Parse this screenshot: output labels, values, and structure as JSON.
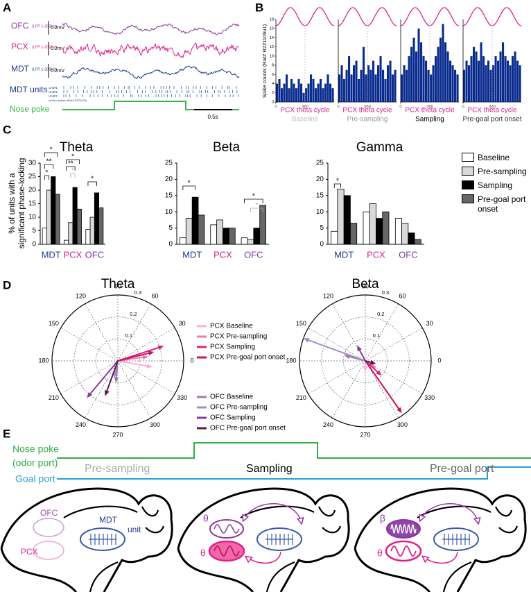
{
  "labels": [
    "A",
    "B",
    "C",
    "D",
    "E"
  ],
  "panel_a": {
    "traces": [
      {
        "name": "OFC",
        "filter": "(LFP 1-300Hz)",
        "scale": "0.2mV",
        "color": "#8b3a9b"
      },
      {
        "name": "PCX",
        "filter": "(LFP 1-300Hz)",
        "scale": "0.2mV",
        "color": "#e0208a"
      },
      {
        "name": "MDT",
        "filter": "(LFP 1-300Hz)",
        "scale": "0.2mV",
        "color": "#1f3b8c"
      }
    ],
    "units_label": "MDT units",
    "units": [
      "Unit#1",
      "Unit#2",
      "Unit#3"
    ],
    "units_note": "(sorted spikes #Rat# R221024)",
    "nose_poke": "Nose poke",
    "time_scale": "0.5s"
  },
  "chart_data": [
    {
      "type": "histogram",
      "xlabel": "PCX theta cycle",
      "title": "Baseline",
      "title_color": "#c0c0c0",
      "color": "#0b2c8f",
      "ylabel": "Spike counts (Rat# R221106u1)",
      "bins": [
        0,
        30,
        60,
        90,
        120,
        150,
        180,
        210,
        240,
        270,
        300,
        330,
        360,
        390,
        420,
        450,
        480,
        510,
        540,
        570,
        600,
        630,
        660,
        690,
        720
      ],
      "counts": [
        4,
        5,
        3,
        4,
        6,
        3,
        5,
        4,
        3,
        5,
        4,
        2,
        3,
        4,
        6,
        5,
        3,
        4,
        5,
        3,
        4,
        6,
        4,
        3
      ],
      "xlim": [
        0,
        720
      ],
      "ylim": [
        0,
        18
      ],
      "xticks": [
        0,
        360
      ],
      "yticks": [
        0,
        2,
        4,
        6,
        8,
        10,
        12,
        14,
        16,
        18
      ]
    },
    {
      "type": "histogram",
      "xlabel": "PCX theta cycle",
      "title": "Pre-sampling",
      "title_color": "#999999",
      "color": "#0b2c8f",
      "bins": [
        0,
        30,
        60,
        90,
        120,
        150,
        180,
        210,
        240,
        270,
        300,
        330,
        360,
        390,
        420,
        450,
        480,
        510,
        540,
        570,
        600,
        630,
        660,
        690,
        720
      ],
      "counts": [
        6,
        8,
        5,
        7,
        10,
        6,
        8,
        9,
        5,
        7,
        12,
        6,
        8,
        7,
        9,
        6,
        8,
        10,
        7,
        5,
        8,
        9,
        6,
        7
      ],
      "xlim": [
        0,
        720
      ],
      "ylim": [
        0,
        18
      ],
      "xticks": [
        0,
        360
      ]
    },
    {
      "type": "histogram",
      "xlabel": "PCX theta cycle",
      "title": "Sampling",
      "title_color": "#000000",
      "color": "#0b2c8f",
      "bins": [
        0,
        30,
        60,
        90,
        120,
        150,
        180,
        210,
        240,
        270,
        300,
        330,
        360,
        390,
        420,
        450,
        480,
        510,
        540,
        570,
        600,
        630,
        660,
        690,
        720
      ],
      "counts": [
        6,
        8,
        7,
        10,
        12,
        14,
        11,
        16,
        13,
        10,
        9,
        7,
        6,
        8,
        10,
        12,
        14,
        17,
        13,
        11,
        9,
        8,
        7,
        6
      ],
      "xlim": [
        0,
        720
      ],
      "ylim": [
        0,
        18
      ],
      "xticks": [
        0,
        360
      ]
    },
    {
      "type": "histogram",
      "xlabel": "PCX theta cycle",
      "title": "Pre-goal port onset",
      "title_color": "#333333",
      "color": "#0b2c8f",
      "bins": [
        0,
        30,
        60,
        90,
        120,
        150,
        180,
        210,
        240,
        270,
        300,
        330,
        360,
        390,
        420,
        450,
        480,
        510,
        540,
        570,
        600,
        630,
        660,
        690,
        720
      ],
      "counts": [
        7,
        9,
        8,
        10,
        12,
        11,
        9,
        13,
        10,
        8,
        9,
        7,
        8,
        10,
        9,
        11,
        13,
        10,
        9,
        8,
        10,
        11,
        9,
        8
      ],
      "xlim": [
        0,
        720
      ],
      "ylim": [
        0,
        18
      ],
      "xticks": [
        0,
        360
      ]
    },
    {
      "type": "bar",
      "title": "Theta",
      "ylabel": [
        "% of units with a",
        "significant phase-locking"
      ],
      "categories": [
        "MDT",
        "PCX",
        "OFC"
      ],
      "category_colors": [
        "#1f3b8c",
        "#d6208a",
        "#7b3a9b"
      ],
      "series": [
        {
          "name": "Baseline",
          "color": "#ffffff",
          "values": [
            6,
            1.5,
            5.5
          ]
        },
        {
          "name": "Pre-sampling",
          "color": "#d9d9d9",
          "values": [
            20,
            8,
            10
          ]
        },
        {
          "name": "Sampling",
          "color": "#000000",
          "values": [
            25,
            21,
            19
          ]
        },
        {
          "name": "Pre-goal port onset",
          "color": "#666666",
          "values": [
            18.5,
            13,
            13.5
          ]
        }
      ],
      "ylim": [
        0,
        30
      ],
      "yticks": [
        0,
        5,
        10,
        15,
        20,
        25,
        30
      ],
      "annotations": [
        "*",
        "**",
        "*",
        "**",
        "*",
        "*",
        "*"
      ]
    },
    {
      "type": "bar",
      "title": "Beta",
      "categories": [
        "MDT",
        "PCX",
        "OFC"
      ],
      "category_colors": [
        "#1f3b8c",
        "#d6208a",
        "#7b3a9b"
      ],
      "series": [
        {
          "color": "#ffffff",
          "values": [
            2,
            6,
            2
          ]
        },
        {
          "color": "#d9d9d9",
          "values": [
            8,
            7.5,
            1.5
          ]
        },
        {
          "color": "#000000",
          "values": [
            14.5,
            5,
            5
          ]
        },
        {
          "color": "#666666",
          "values": [
            9,
            5,
            12
          ]
        }
      ],
      "ylim": [
        0,
        25
      ],
      "yticks": [
        0,
        5,
        10,
        15,
        20,
        25
      ],
      "annotations": [
        "*",
        "*",
        "*"
      ]
    },
    {
      "type": "bar",
      "title": "Gamma",
      "categories": [
        "MDT",
        "PCX",
        "OFC"
      ],
      "category_colors": [
        "#1f3b8c",
        "#d6208a",
        "#7b3a9b"
      ],
      "series": [
        {
          "color": "#ffffff",
          "values": [
            4,
            10,
            8
          ]
        },
        {
          "color": "#d9d9d9",
          "values": [
            17,
            12.5,
            6.5
          ]
        },
        {
          "color": "#000000",
          "values": [
            15,
            8,
            3.5
          ]
        },
        {
          "color": "#666666",
          "values": [
            6.5,
            10,
            1.5
          ]
        }
      ],
      "ylim": [
        0,
        25
      ],
      "yticks": [
        0,
        5,
        10,
        15,
        20,
        25
      ],
      "annotations": [
        "*"
      ]
    },
    {
      "type": "polar",
      "title": "Theta",
      "rlim": [
        0,
        0.3
      ],
      "rticks": [
        0.1,
        0.2,
        0.3
      ],
      "thetaticks": [
        0,
        30,
        60,
        90,
        120,
        150,
        180,
        210,
        240,
        270,
        300,
        330
      ],
      "series": [
        {
          "name": "PCX Baseline",
          "color": "#f7b3cf",
          "values": [
            350,
            0.16
          ]
        },
        {
          "name": "PCX Pre-sampling",
          "color": "#ee79b4",
          "values": [
            8,
            0.14
          ]
        },
        {
          "name": "PCX Sampling",
          "color": "#e0207f",
          "values": [
            18,
            0.22
          ]
        },
        {
          "name": "PCX Pre-goal port onset",
          "color": "#c8145f",
          "values": [
            14,
            0.17
          ]
        },
        {
          "name": "OFC Baseline",
          "color": "#a07ba0",
          "values": [
            265,
            0.1
          ]
        },
        {
          "name": "OFC Pre-sampling",
          "color": "#9b8fd0",
          "values": [
            258,
            0.08
          ]
        },
        {
          "name": "OFC Sampling",
          "color": "#8a3a9a",
          "values": [
            230,
            0.22
          ]
        },
        {
          "name": "OFC Pre-goal port onset",
          "color": "#5a1a4a",
          "values": [
            250,
            0.17
          ]
        }
      ]
    },
    {
      "type": "polar",
      "title": "Beta",
      "rlim": [
        0,
        0.3
      ],
      "rticks": [
        0.1,
        0.2,
        0.3
      ],
      "thetaticks": [
        0,
        30,
        60,
        90,
        120,
        150,
        180,
        210,
        240,
        270,
        300,
        330
      ],
      "series": [
        {
          "color": "#f7b3cf",
          "values": [
            270,
            0.05
          ]
        },
        {
          "color": "#ee79b4",
          "values": [
            325,
            0.06
          ]
        },
        {
          "color": "#e0207f",
          "values": [
            318,
            0.1
          ]
        },
        {
          "color": "#c8145f",
          "values": [
            305,
            0.29
          ]
        },
        {
          "color": "#a07ba0",
          "values": [
            165,
            0.1
          ]
        },
        {
          "color": "#9b8fd0",
          "values": [
            160,
            0.3
          ]
        },
        {
          "color": "#8a3a9a",
          "values": [
            118,
            0.08
          ]
        },
        {
          "color": "#5a1a4a",
          "values": [
            345,
            0.05
          ]
        }
      ]
    }
  ],
  "panel_e": {
    "nose_poke": "Nose poke",
    "odor_port": "(odor port)",
    "goal_port": "Goal port",
    "phases": [
      "Pre-sampling",
      "Sampling",
      "Pre-goal port"
    ],
    "ofc": "OFC",
    "pcx": "PCX",
    "mdt": "MDT",
    "unit": "unit",
    "theta": "θ",
    "beta": "β"
  }
}
